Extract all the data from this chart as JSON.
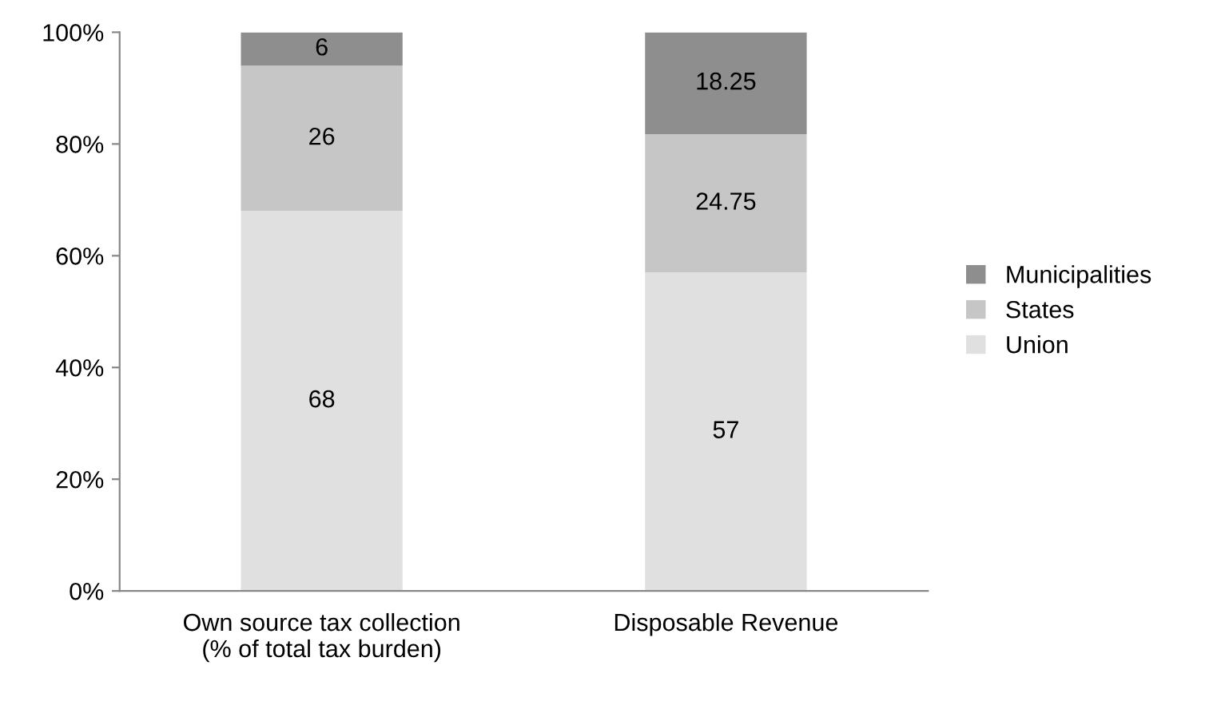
{
  "chart_data": {
    "type": "bar",
    "stacked": true,
    "categories": [
      "Own source tax collection\n(% of total tax burden)",
      "Disposable Revenue"
    ],
    "series": [
      {
        "name": "Union",
        "color": "#e0e0e0",
        "values": [
          68,
          57
        ]
      },
      {
        "name": "States",
        "color": "#c6c6c6",
        "values": [
          26,
          24.75
        ]
      },
      {
        "name": "Municipalities",
        "color": "#8e8e8e",
        "values": [
          6,
          18.25
        ]
      }
    ],
    "ylim": [
      0,
      100
    ],
    "yticks": [
      {
        "value": 0,
        "label": "0%"
      },
      {
        "value": 20,
        "label": "20%"
      },
      {
        "value": 40,
        "label": "40%"
      },
      {
        "value": 60,
        "label": "60%"
      },
      {
        "value": 80,
        "label": "80%"
      },
      {
        "value": 100,
        "label": "100%"
      }
    ],
    "data_labels": true,
    "grid": false,
    "legend": "right"
  }
}
